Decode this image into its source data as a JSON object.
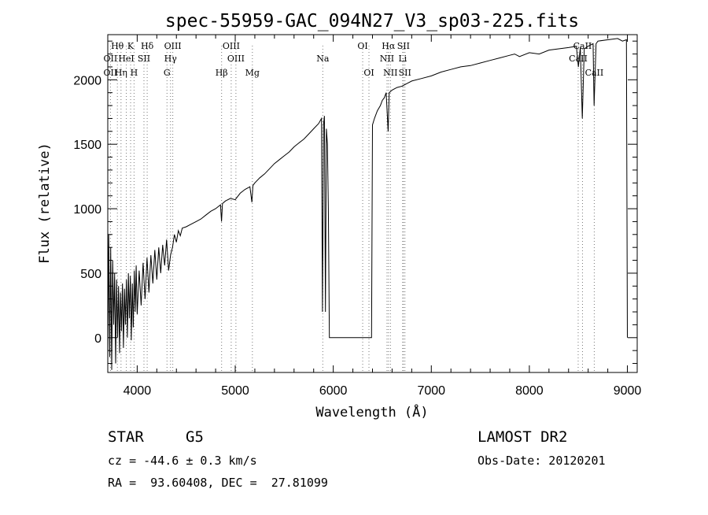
{
  "chart_data": {
    "type": "line",
    "title": "spec-55959-GAC_094N27_V3_sp03-225.fits",
    "xlabel": "Wavelength (Å)",
    "ylabel": "Flux (relative)",
    "xlim": [
      3700,
      9100
    ],
    "ylim": [
      -270,
      2350
    ],
    "x_ticks": [
      4000,
      5000,
      6000,
      7000,
      8000,
      9000
    ],
    "y_ticks": [
      0,
      500,
      1000,
      1500,
      2000
    ],
    "grid": false,
    "series": [
      {
        "points": [
          [
            3700,
            -200
          ],
          [
            3710,
            800
          ],
          [
            3720,
            -150
          ],
          [
            3730,
            700
          ],
          [
            3740,
            -250
          ],
          [
            3750,
            600
          ],
          [
            3760,
            100
          ],
          [
            3770,
            500
          ],
          [
            3780,
            -200
          ],
          [
            3790,
            450
          ],
          [
            3800,
            0
          ],
          [
            3810,
            400
          ],
          [
            3820,
            -120
          ],
          [
            3830,
            350
          ],
          [
            3840,
            50
          ],
          [
            3850,
            420
          ],
          [
            3860,
            -80
          ],
          [
            3870,
            380
          ],
          [
            3880,
            100
          ],
          [
            3890,
            450
          ],
          [
            3900,
            0
          ],
          [
            3910,
            500
          ],
          [
            3920,
            150
          ],
          [
            3930,
            480
          ],
          [
            3940,
            -20
          ],
          [
            3950,
            420
          ],
          [
            3960,
            80
          ],
          [
            3970,
            520
          ],
          [
            3980,
            200
          ],
          [
            3990,
            560
          ],
          [
            4000,
            180
          ],
          [
            4020,
            520
          ],
          [
            4040,
            250
          ],
          [
            4060,
            580
          ],
          [
            4080,
            300
          ],
          [
            4100,
            620
          ],
          [
            4120,
            350
          ],
          [
            4140,
            640
          ],
          [
            4160,
            420
          ],
          [
            4180,
            680
          ],
          [
            4200,
            450
          ],
          [
            4220,
            700
          ],
          [
            4240,
            500
          ],
          [
            4260,
            720
          ],
          [
            4280,
            560
          ],
          [
            4300,
            760
          ],
          [
            4320,
            520
          ],
          [
            4340,
            640
          ],
          [
            4360,
            700
          ],
          [
            4380,
            800
          ],
          [
            4400,
            740
          ],
          [
            4420,
            830
          ],
          [
            4440,
            790
          ],
          [
            4460,
            850
          ],
          [
            4500,
            860
          ],
          [
            4550,
            880
          ],
          [
            4600,
            900
          ],
          [
            4650,
            920
          ],
          [
            4700,
            950
          ],
          [
            4750,
            980
          ],
          [
            4800,
            1000
          ],
          [
            4850,
            1030
          ],
          [
            4860,
            900
          ],
          [
            4870,
            1040
          ],
          [
            4900,
            1060
          ],
          [
            4950,
            1080
          ],
          [
            5000,
            1070
          ],
          [
            5050,
            1120
          ],
          [
            5100,
            1150
          ],
          [
            5150,
            1170
          ],
          [
            5170,
            1050
          ],
          [
            5180,
            1180
          ],
          [
            5200,
            1200
          ],
          [
            5250,
            1240
          ],
          [
            5300,
            1270
          ],
          [
            5350,
            1310
          ],
          [
            5400,
            1350
          ],
          [
            5450,
            1380
          ],
          [
            5500,
            1410
          ],
          [
            5550,
            1440
          ],
          [
            5600,
            1480
          ],
          [
            5650,
            1510
          ],
          [
            5700,
            1540
          ],
          [
            5750,
            1580
          ],
          [
            5800,
            1620
          ],
          [
            5850,
            1660
          ],
          [
            5880,
            1700
          ],
          [
            5890,
            200
          ],
          [
            5900,
            1650
          ],
          [
            5910,
            1720
          ],
          [
            5920,
            200
          ],
          [
            5930,
            1620
          ],
          [
            5940,
            1500
          ],
          [
            5950,
            1000
          ],
          [
            5960,
            0
          ],
          [
            6000,
            0
          ],
          [
            6100,
            0
          ],
          [
            6200,
            0
          ],
          [
            6300,
            0
          ],
          [
            6380,
            0
          ],
          [
            6390,
            0
          ],
          [
            6400,
            1650
          ],
          [
            6420,
            1700
          ],
          [
            6450,
            1760
          ],
          [
            6480,
            1800
          ],
          [
            6500,
            1840
          ],
          [
            6520,
            1860
          ],
          [
            6540,
            1900
          ],
          [
            6560,
            1600
          ],
          [
            6570,
            1900
          ],
          [
            6600,
            1920
          ],
          [
            6650,
            1940
          ],
          [
            6700,
            1950
          ],
          [
            6750,
            1970
          ],
          [
            6800,
            1990
          ],
          [
            6900,
            2010
          ],
          [
            7000,
            2030
          ],
          [
            7100,
            2060
          ],
          [
            7200,
            2080
          ],
          [
            7300,
            2100
          ],
          [
            7400,
            2110
          ],
          [
            7500,
            2130
          ],
          [
            7600,
            2150
          ],
          [
            7700,
            2170
          ],
          [
            7800,
            2190
          ],
          [
            7850,
            2200
          ],
          [
            7900,
            2180
          ],
          [
            8000,
            2210
          ],
          [
            8100,
            2200
          ],
          [
            8200,
            2230
          ],
          [
            8300,
            2240
          ],
          [
            8400,
            2250
          ],
          [
            8480,
            2260
          ],
          [
            8500,
            2100
          ],
          [
            8520,
            2250
          ],
          [
            8540,
            1700
          ],
          [
            8560,
            2240
          ],
          [
            8600,
            2260
          ],
          [
            8650,
            2280
          ],
          [
            8660,
            1800
          ],
          [
            8680,
            2280
          ],
          [
            8700,
            2300
          ],
          [
            8800,
            2310
          ],
          [
            8900,
            2320
          ],
          [
            8950,
            2300
          ],
          [
            8990,
            2310
          ],
          [
            9000,
            0
          ]
        ]
      }
    ],
    "line_markers": [
      {
        "label": "Hθ",
        "x": 3798,
        "row": 1
      },
      {
        "label": "K",
        "x": 3933,
        "row": 1
      },
      {
        "label": "Hδ",
        "x": 4102,
        "row": 1
      },
      {
        "label": "OIII",
        "x": 4363,
        "row": 1
      },
      {
        "label": "OIII",
        "x": 4959,
        "row": 1
      },
      {
        "label": "OI",
        "x": 6300,
        "row": 1
      },
      {
        "label": "Hα",
        "x": 6563,
        "row": 1
      },
      {
        "label": "SII",
        "x": 6716,
        "row": 1
      },
      {
        "label": "CaII",
        "x": 8542,
        "row": 1
      },
      {
        "label": "OII",
        "x": 3727,
        "row": 2
      },
      {
        "label": "HeI",
        "x": 3889,
        "row": 2
      },
      {
        "label": "SII",
        "x": 4069,
        "row": 2
      },
      {
        "label": "Hγ",
        "x": 4340,
        "row": 2
      },
      {
        "label": "OIII",
        "x": 5007,
        "row": 2
      },
      {
        "label": "Na",
        "x": 5893,
        "row": 2
      },
      {
        "label": "NII",
        "x": 6548,
        "row": 2
      },
      {
        "label": "Li",
        "x": 6708,
        "row": 2
      },
      {
        "label": "CaII",
        "x": 8498,
        "row": 2
      },
      {
        "label": "OII",
        "x": 3727,
        "row": 3
      },
      {
        "label": "Hη",
        "x": 3835,
        "row": 3
      },
      {
        "label": "H",
        "x": 3968,
        "row": 3
      },
      {
        "label": "G",
        "x": 4304,
        "row": 3
      },
      {
        "label": "Hβ",
        "x": 4861,
        "row": 3
      },
      {
        "label": "Mg",
        "x": 5175,
        "row": 3
      },
      {
        "label": "OI",
        "x": 6364,
        "row": 3
      },
      {
        "label": "NII",
        "x": 6583,
        "row": 3
      },
      {
        "label": "SII",
        "x": 6731,
        "row": 3
      },
      {
        "label": "CaII",
        "x": 8662,
        "row": 3
      }
    ]
  },
  "footer": {
    "object_class": "STAR",
    "subclass": "G5",
    "survey": "LAMOST DR2",
    "cz": "cz = -44.6 ± 0.3 km/s",
    "obs_date": "Obs-Date: 20120201",
    "coords": "RA =  93.60408, DEC =  27.81099"
  }
}
